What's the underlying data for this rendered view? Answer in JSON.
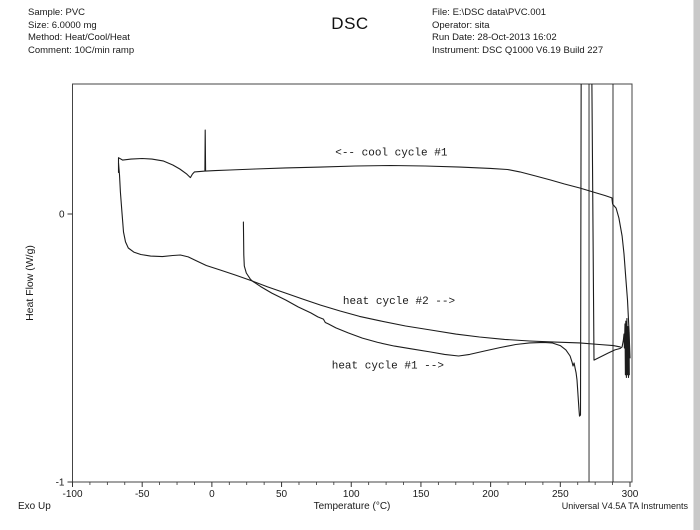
{
  "header": {
    "left_lines": [
      "Sample: PVC",
      "Size:  6.0000 mg",
      "Method: Heat/Cool/Heat",
      "Comment: 10C/min ramp"
    ],
    "right_lines": [
      "File: E:\\DSC data\\PVC.001",
      "Operator: sita",
      "Run Date: 28-Oct-2013 16:02",
      "Instrument: DSC Q1000 V6.19 Build 227"
    ],
    "title": "DSC"
  },
  "footer": {
    "exo_label": "Exo Up",
    "credit": "Universal V4.5A TA Instruments"
  },
  "chart_data": {
    "type": "line",
    "title": "DSC",
    "xlabel": "Temperature (°C)",
    "ylabel": "Heat Flow (W/g)",
    "xlim": [
      -100,
      300
    ],
    "ylim": [
      -1,
      0.49
    ],
    "x_major_ticks": [
      -100,
      -50,
      0,
      50,
      100,
      150,
      200,
      250,
      300
    ],
    "x_minor_step": 12.5,
    "y_ticks": [
      0,
      -1
    ],
    "grid": false,
    "line_color": "#1c1c1c",
    "legend_position": "none",
    "annotations": [
      {
        "text": "<-- cool cycle #1",
        "x_c": 88.5,
        "y_wg": 0.231
      },
      {
        "text": "heat cycle #2 -->",
        "x_c": 94.0,
        "y_wg": -0.322
      },
      {
        "text": "heat cycle #1 -->",
        "x_c": 86.0,
        "y_wg": -0.564
      }
    ],
    "artifact_vlines_c": [
      270.6,
      287.8
    ],
    "series": [
      {
        "name": "cool cycle #1",
        "points": [
          [
            -67,
            0.155
          ],
          [
            -67,
            0.21
          ],
          [
            -64,
            0.201
          ],
          [
            -58,
            0.205
          ],
          [
            -50,
            0.207
          ],
          [
            -43,
            0.205
          ],
          [
            -35,
            0.198
          ],
          [
            -28,
            0.183
          ],
          [
            -23,
            0.168
          ],
          [
            -18,
            0.149
          ],
          [
            -15.4,
            0.136
          ],
          [
            -14,
            0.149
          ],
          [
            -12.5,
            0.157
          ],
          [
            -8,
            0.159
          ],
          [
            -5,
            0.16
          ],
          [
            -4.8,
            0.313
          ],
          [
            -4.5,
            0.16
          ],
          [
            2.5,
            0.162
          ],
          [
            13,
            0.164
          ],
          [
            31,
            0.168
          ],
          [
            53,
            0.172
          ],
          [
            78,
            0.175
          ],
          [
            103,
            0.179
          ],
          [
            128,
            0.181
          ],
          [
            153,
            0.179
          ],
          [
            178,
            0.175
          ],
          [
            200,
            0.17
          ],
          [
            212,
            0.166
          ],
          [
            221,
            0.157
          ],
          [
            232,
            0.142
          ],
          [
            243,
            0.127
          ],
          [
            253,
            0.112
          ],
          [
            264,
            0.097
          ],
          [
            275,
            0.08
          ],
          [
            282,
            0.069
          ],
          [
            287,
            0.06
          ],
          [
            287.5,
            0.037
          ],
          [
            290,
            0.022
          ],
          [
            292,
            -0.015
          ],
          [
            294.3,
            -0.082
          ],
          [
            295.7,
            -0.149
          ],
          [
            297,
            -0.239
          ],
          [
            298.2,
            -0.321
          ],
          [
            299.3,
            -0.433
          ],
          [
            300,
            -0.537
          ]
        ]
      },
      {
        "name": "heat cycle #2",
        "points": [
          [
            -67,
            0.19
          ],
          [
            -66.3,
            0.146
          ],
          [
            -65.6,
            0.082
          ],
          [
            -64.5,
            0.004
          ],
          [
            -63.4,
            -0.067
          ],
          [
            -62,
            -0.104
          ],
          [
            -60,
            -0.127
          ],
          [
            -56,
            -0.142
          ],
          [
            -51,
            -0.151
          ],
          [
            -44,
            -0.157
          ],
          [
            -35.5,
            -0.159
          ],
          [
            -28,
            -0.155
          ],
          [
            -22.6,
            -0.153
          ],
          [
            -17,
            -0.16
          ],
          [
            -11,
            -0.175
          ],
          [
            -4,
            -0.192
          ],
          [
            6,
            -0.209
          ],
          [
            17,
            -0.228
          ],
          [
            29,
            -0.25
          ],
          [
            40,
            -0.272
          ],
          [
            53,
            -0.295
          ],
          [
            65,
            -0.317
          ],
          [
            78,
            -0.34
          ],
          [
            92,
            -0.362
          ],
          [
            106,
            -0.382
          ],
          [
            121,
            -0.399
          ],
          [
            139,
            -0.418
          ],
          [
            157,
            -0.433
          ],
          [
            175,
            -0.448
          ],
          [
            192,
            -0.459
          ],
          [
            210,
            -0.468
          ],
          [
            228,
            -0.474
          ],
          [
            246,
            -0.478
          ],
          [
            264,
            -0.481
          ],
          [
            278,
            -0.487
          ],
          [
            288,
            -0.491
          ],
          [
            293,
            -0.496
          ]
        ]
      },
      {
        "name": "heat cycle #1",
        "points": [
          [
            22.6,
            -0.03
          ],
          [
            22.9,
            -0.153
          ],
          [
            23.3,
            -0.194
          ],
          [
            24.7,
            -0.22
          ],
          [
            27.6,
            -0.243
          ],
          [
            29,
            -0.25
          ],
          [
            35,
            -0.271
          ],
          [
            43,
            -0.295
          ],
          [
            53,
            -0.321
          ],
          [
            62,
            -0.347
          ],
          [
            71,
            -0.369
          ],
          [
            76,
            -0.384
          ],
          [
            80,
            -0.392
          ],
          [
            81.4,
            -0.405
          ],
          [
            83.5,
            -0.41
          ],
          [
            89,
            -0.425
          ],
          [
            98,
            -0.444
          ],
          [
            108,
            -0.463
          ],
          [
            119,
            -0.479
          ],
          [
            131,
            -0.493
          ],
          [
            144,
            -0.504
          ],
          [
            157,
            -0.515
          ],
          [
            167,
            -0.524
          ],
          [
            177,
            -0.53
          ],
          [
            185,
            -0.524
          ],
          [
            196,
            -0.511
          ],
          [
            207,
            -0.498
          ],
          [
            218,
            -0.487
          ],
          [
            228,
            -0.481
          ],
          [
            238,
            -0.479
          ],
          [
            244,
            -0.481
          ],
          [
            250,
            -0.491
          ],
          [
            254,
            -0.507
          ],
          [
            257,
            -0.53
          ],
          [
            258.4,
            -0.552
          ],
          [
            259.1,
            -0.567
          ],
          [
            259.9,
            -0.556
          ],
          [
            260.6,
            -0.575
          ],
          [
            261.3,
            -0.593
          ],
          [
            262,
            -0.619
          ],
          [
            262.7,
            -0.675
          ],
          [
            263.4,
            -0.731
          ],
          [
            263.8,
            -0.754
          ],
          [
            264.5,
            -0.75
          ],
          [
            265,
            0.58
          ],
          [
            272.5,
            0.58
          ],
          [
            274.2,
            -0.545
          ],
          [
            278.5,
            -0.534
          ],
          [
            284.2,
            -0.519
          ],
          [
            289.2,
            -0.507
          ],
          [
            292.8,
            -0.502
          ],
          [
            294.3,
            -0.496
          ],
          [
            295.3,
            -0.47
          ],
          [
            295.7,
            -0.448
          ],
          [
            296,
            -0.5
          ],
          [
            296.4,
            -0.41
          ],
          [
            296.7,
            -0.6
          ],
          [
            297,
            -0.4
          ],
          [
            297.4,
            -0.61
          ],
          [
            297.8,
            -0.39
          ],
          [
            298.2,
            -0.6
          ],
          [
            298.6,
            -0.42
          ],
          [
            298.9,
            -0.61
          ],
          [
            299.3,
            -0.44
          ],
          [
            299.5,
            -0.6
          ]
        ]
      }
    ]
  }
}
